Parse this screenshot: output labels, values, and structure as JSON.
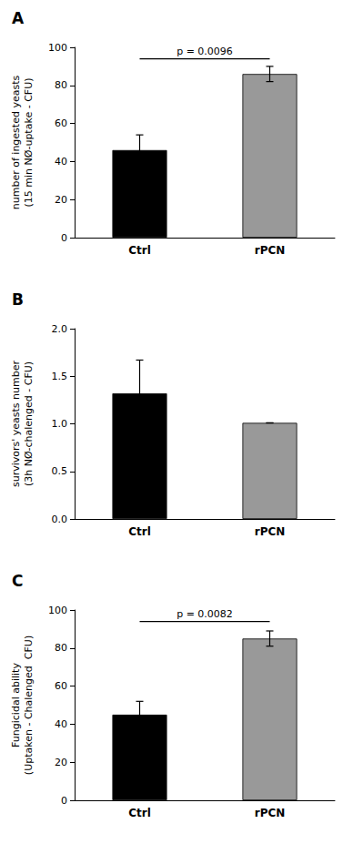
{
  "chart_data": [
    {
      "type": "bar",
      "title": "A",
      "categories": [
        "Ctrl",
        "rPCN"
      ],
      "values": [
        46,
        86
      ],
      "errors": [
        8,
        4
      ],
      "colors": [
        "#000000",
        "#999999"
      ],
      "ylabel": "number of ingested yeasts\n(15 min NØ-uptake - CFU)",
      "ylim": [
        0,
        100
      ],
      "yticks": [
        0,
        20,
        40,
        60,
        80,
        100
      ],
      "grid": false,
      "annotations": [
        {
          "text": "p = 0.0096",
          "y": 94,
          "between": [
            "Ctrl",
            "rPCN"
          ]
        }
      ]
    },
    {
      "type": "bar",
      "title": "B",
      "categories": [
        "Ctrl",
        "rPCN"
      ],
      "values": [
        1.32,
        1.01
      ],
      "errors": [
        0.35,
        0.0
      ],
      "colors": [
        "#000000",
        "#999999"
      ],
      "ylabel": "survivors' yeasts number\n(3h NØ-chalenged - CFU)",
      "ylim": [
        0,
        2
      ],
      "yticks": [
        {
          "value": 0,
          "label": "0.0"
        },
        0.5,
        {
          "value": 1,
          "label": "1.0"
        },
        1.5,
        {
          "value": 2,
          "label": "2.0"
        }
      ],
      "grid": false
    },
    {
      "type": "bar",
      "title": "C",
      "categories": [
        "Ctrl",
        "rPCN"
      ],
      "values": [
        45,
        85
      ],
      "errors": [
        7,
        4
      ],
      "colors": [
        "#000000",
        "#999999"
      ],
      "ylabel": "Fungicidal ability\n(Uptaken - Chalenged  CFU)",
      "ylim": [
        0,
        100
      ],
      "yticks": [
        0,
        20,
        40,
        60,
        80,
        100
      ],
      "grid": false,
      "annotations": [
        {
          "text": "p = 0.0082",
          "y": 94,
          "between": [
            "Ctrl",
            "rPCN"
          ]
        }
      ]
    }
  ]
}
